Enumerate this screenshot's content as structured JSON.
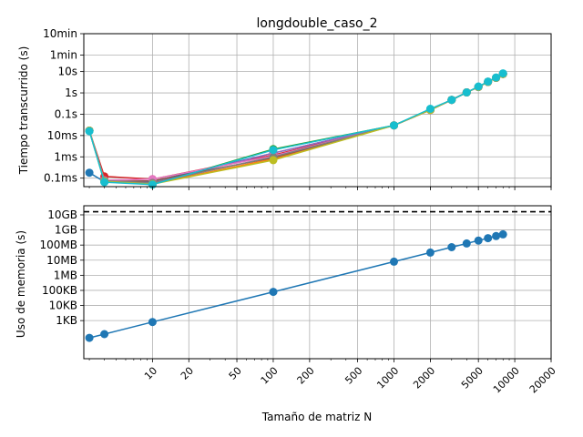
{
  "chart_data": [
    {
      "type": "line",
      "title": "longdouble_caso_2",
      "xlabel": "",
      "ylabel": "Tiempo transcurrido (s)",
      "xscale": "log",
      "yscale": "log",
      "xlim": [
        2.7,
        20000
      ],
      "ylim": [
        4e-05,
        600
      ],
      "grid": true,
      "ytick_values": [
        0.0001,
        0.001,
        0.01,
        0.1,
        1,
        10,
        60,
        600
      ],
      "ytick_labels": [
        "0.1ms",
        "1ms",
        "10ms",
        "0.1s",
        "1s",
        "10s",
        "1min",
        "10min"
      ],
      "x": [
        3,
        4,
        10,
        100,
        1000,
        2000,
        3000,
        4000,
        5000,
        6000,
        7000,
        8000
      ],
      "series": [
        {
          "color": "#1f77b4",
          "values": [
            0.00018,
            6.8e-05,
            7e-05,
            0.0015,
            0.03,
            0.16,
            0.47,
            1.05,
            1.9,
            3.3,
            5.1,
            7.8
          ]
        },
        {
          "color": "#ff7f0e",
          "values": [
            0.017,
            6.8e-05,
            5.5e-05,
            0.0008,
            0.03,
            0.16,
            0.47,
            1.05,
            1.9,
            3.3,
            5.1,
            7.8
          ]
        },
        {
          "color": "#2ca02c",
          "values": [
            0.017,
            7.2e-05,
            5e-05,
            0.0023,
            0.03,
            0.16,
            0.47,
            1.05,
            1.9,
            3.3,
            5.1,
            7.8
          ]
        },
        {
          "color": "#d62728",
          "values": [
            0.017,
            0.00012,
            9e-05,
            0.0012,
            0.03,
            0.16,
            0.47,
            1.05,
            1.9,
            3.3,
            5.1,
            7.8
          ]
        },
        {
          "color": "#9467bd",
          "values": [
            0.017,
            8e-05,
            6e-05,
            0.0015,
            0.03,
            0.16,
            0.47,
            1.05,
            1.9,
            3.3,
            5.1,
            7.8
          ]
        },
        {
          "color": "#8c564b",
          "values": [
            0.017,
            7e-05,
            7.5e-05,
            0.0009,
            0.03,
            0.16,
            0.47,
            1.05,
            1.9,
            3.3,
            5.1,
            7.8
          ]
        },
        {
          "color": "#e377c2",
          "values": [
            0.017,
            8e-05,
            9e-05,
            0.0011,
            0.03,
            0.16,
            0.47,
            1.05,
            1.9,
            3.3,
            5.1,
            7.8
          ]
        },
        {
          "color": "#7f7f7f",
          "values": [
            0.017,
            7.5e-05,
            6e-05,
            0.001,
            0.03,
            0.16,
            0.47,
            1.05,
            1.9,
            3.3,
            5.1,
            7.8
          ]
        },
        {
          "color": "#bcbd22",
          "values": [
            0.017,
            7e-05,
            5.2e-05,
            0.0007,
            0.03,
            0.16,
            0.47,
            1.05,
            1.9,
            3.3,
            5.1,
            7.8
          ]
        },
        {
          "color": "#17becf",
          "values": [
            0.016,
            6.5e-05,
            5e-05,
            0.0021,
            0.03,
            0.18,
            0.47,
            1.05,
            2.0,
            3.4,
            5.3,
            8.2
          ]
        }
      ]
    },
    {
      "type": "line",
      "title": "",
      "xlabel": "Tamaño de matriz N",
      "ylabel": "Uso de memoria (s)",
      "xscale": "log",
      "yscale": "log",
      "xlim": [
        2.7,
        20000
      ],
      "ylim": [
        3,
        40000000000
      ],
      "grid": true,
      "ytick_values": [
        1000,
        10000,
        100000,
        1000000,
        10000000,
        100000000,
        1000000000,
        10000000000
      ],
      "ytick_labels": [
        "1KB",
        "10KB",
        "100KB",
        "1MB",
        "10MB",
        "100MB",
        "1GB",
        "10GB"
      ],
      "xtick_values": [
        10,
        20,
        50,
        100,
        200,
        500,
        1000,
        2000,
        5000,
        10000,
        20000
      ],
      "xtick_labels": [
        "10",
        "20",
        "50",
        "100",
        "200",
        "500",
        "1000",
        "2000",
        "5000",
        "10000",
        "20000"
      ],
      "reference_line": {
        "value": 16000000000,
        "style": "dashed",
        "color": "#000000"
      },
      "x": [
        3,
        4,
        10,
        100,
        1000,
        2000,
        3000,
        4000,
        5000,
        6000,
        7000,
        8000
      ],
      "series": [
        {
          "color": "#1f77b4",
          "values": [
            72,
            128,
            800,
            80000,
            8000000,
            32000000,
            72000000,
            128000000,
            200000000,
            288000000,
            392000000,
            512000000
          ]
        }
      ]
    }
  ]
}
